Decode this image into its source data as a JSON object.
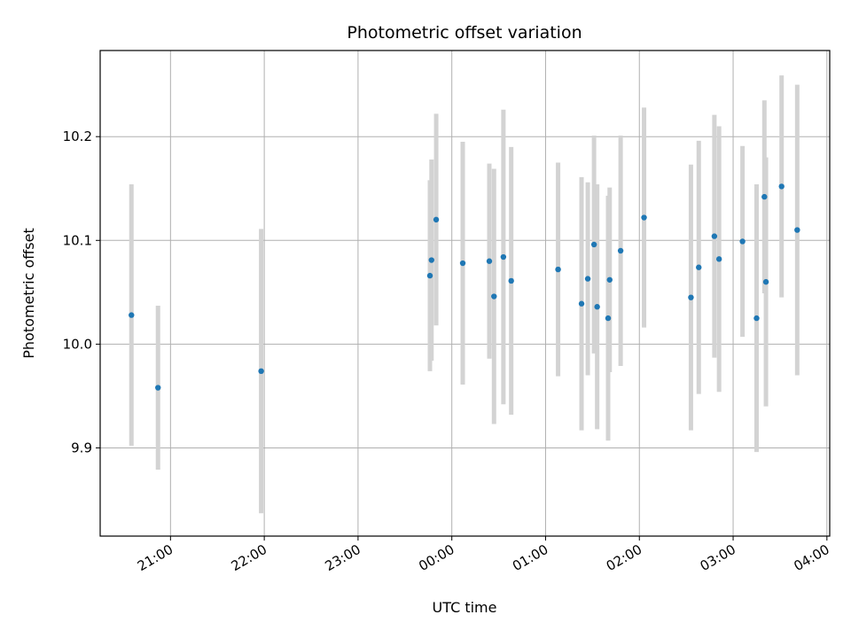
{
  "chart_data": {
    "type": "scatter",
    "title": "Photometric offset variation",
    "xlabel": "UTC time",
    "ylabel": "Photometric offset",
    "x_axis_kind": "time",
    "xlim_hours": [
      20.25,
      28.03
    ],
    "ylim": [
      9.815,
      10.283
    ],
    "grid": true,
    "point_color": "#1f77b4",
    "errorbar_color": "#d3d3d3",
    "x_ticks": [
      {
        "hour": 21,
        "label": "21:00"
      },
      {
        "hour": 22,
        "label": "22:00"
      },
      {
        "hour": 23,
        "label": "23:00"
      },
      {
        "hour": 24,
        "label": "00:00"
      },
      {
        "hour": 25,
        "label": "01:00"
      },
      {
        "hour": 26,
        "label": "02:00"
      },
      {
        "hour": 27,
        "label": "03:00"
      },
      {
        "hour": 28,
        "label": "04:00"
      }
    ],
    "y_ticks": [
      {
        "value": 9.9,
        "label": "9.9"
      },
      {
        "value": 10.0,
        "label": "10.0"
      },
      {
        "value": 10.1,
        "label": "10.1"
      },
      {
        "value": 10.2,
        "label": "10.2"
      }
    ],
    "points": [
      {
        "time": "20:35",
        "y": 10.028,
        "yerr": 0.126
      },
      {
        "time": "20:52",
        "y": 9.958,
        "yerr": 0.079
      },
      {
        "time": "21:58",
        "y": 9.974,
        "yerr": 0.137
      },
      {
        "time": "23:46",
        "y": 10.066,
        "yerr": 0.092
      },
      {
        "time": "23:47",
        "y": 10.081,
        "yerr": 0.097
      },
      {
        "time": "23:50",
        "y": 10.12,
        "yerr": 0.102
      },
      {
        "time": "00:07",
        "y": 10.078,
        "yerr": 0.117
      },
      {
        "time": "00:24",
        "y": 10.08,
        "yerr": 0.094
      },
      {
        "time": "00:27",
        "y": 10.046,
        "yerr": 0.123
      },
      {
        "time": "00:33",
        "y": 10.084,
        "yerr": 0.142
      },
      {
        "time": "00:38",
        "y": 10.061,
        "yerr": 0.129
      },
      {
        "time": "01:08",
        "y": 10.072,
        "yerr": 0.103
      },
      {
        "time": "01:23",
        "y": 10.039,
        "yerr": 0.122
      },
      {
        "time": "01:27",
        "y": 10.063,
        "yerr": 0.093
      },
      {
        "time": "01:31",
        "y": 10.096,
        "yerr": 0.105
      },
      {
        "time": "01:33",
        "y": 10.036,
        "yerr": 0.118
      },
      {
        "time": "01:40",
        "y": 10.025,
        "yerr": 0.118
      },
      {
        "time": "01:41",
        "y": 10.062,
        "yerr": 0.089
      },
      {
        "time": "01:48",
        "y": 10.09,
        "yerr": 0.111
      },
      {
        "time": "02:03",
        "y": 10.122,
        "yerr": 0.106
      },
      {
        "time": "02:33",
        "y": 10.045,
        "yerr": 0.128
      },
      {
        "time": "02:38",
        "y": 10.074,
        "yerr": 0.122
      },
      {
        "time": "02:48",
        "y": 10.104,
        "yerr": 0.117
      },
      {
        "time": "02:51",
        "y": 10.082,
        "yerr": 0.128
      },
      {
        "time": "03:06",
        "y": 10.099,
        "yerr": 0.092
      },
      {
        "time": "03:15",
        "y": 10.025,
        "yerr": 0.129
      },
      {
        "time": "03:20",
        "y": 10.142,
        "yerr": 0.093
      },
      {
        "time": "03:21",
        "y": 10.06,
        "yerr": 0.12
      },
      {
        "time": "03:31",
        "y": 10.152,
        "yerr": 0.107
      },
      {
        "time": "03:41",
        "y": 10.11,
        "yerr": 0.14
      }
    ]
  }
}
